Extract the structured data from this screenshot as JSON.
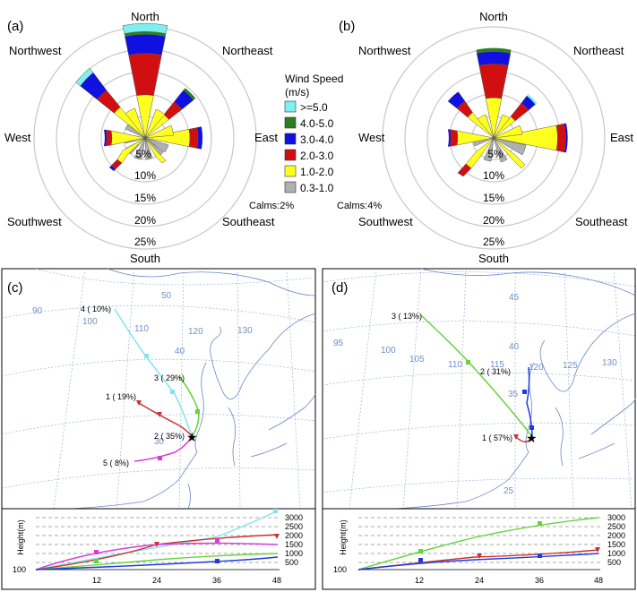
{
  "panels": {
    "a": {
      "label": "(a)",
      "directions": {
        "north": "North",
        "northeast": "Northeast",
        "east": "East",
        "southeast": "Southeast",
        "south": "South",
        "southwest": "Southwest",
        "west": "West",
        "northwest": "Northwest"
      },
      "ring_labels": [
        "5%",
        "10%",
        "15%",
        "20%",
        "25%"
      ],
      "calms": "Calms:2%"
    },
    "b": {
      "label": "(b)",
      "directions": {
        "north": "North",
        "northeast": "Northeast",
        "east": "East",
        "southeast": "Southeast",
        "south": "South",
        "southwest": "Southwest",
        "west": "West",
        "northwest": "Northwest"
      },
      "ring_labels": [
        "5%",
        "10%",
        "15%",
        "20%",
        "25%"
      ],
      "calms": "Calms:4%"
    },
    "c": {
      "label": "(c)",
      "map_numbers": [
        "90",
        "100",
        "110",
        "120",
        "130",
        "50",
        "40",
        "30"
      ],
      "trajectories": [
        "1 ( 19%)",
        "2 ( 35%)",
        "3 ( 29%)",
        "4 ( 10%)",
        "5 ( 8%)"
      ]
    },
    "d": {
      "label": "(d)",
      "map_numbers": [
        "95",
        "100",
        "105",
        "110",
        "115",
        "120",
        "125",
        "130",
        "45",
        "40",
        "35",
        "25"
      ],
      "trajectories": [
        "1 ( 57%)",
        "2 ( 31%)",
        "3 ( 13%)"
      ]
    }
  },
  "legend": {
    "title1": "Wind Speed",
    "title2": "(m/s)",
    "items": [
      {
        "label": ">=5.0",
        "color": "#7ff0f0"
      },
      {
        "label": "4.0-5.0",
        "color": "#2e7d1f"
      },
      {
        "label": "3.0-4.0",
        "color": "#1010e0"
      },
      {
        "label": "2.0-3.0",
        "color": "#d01010"
      },
      {
        "label": "1.0-2.0",
        "color": "#ffff20"
      },
      {
        "label": "0.3-1.0",
        "color": "#b0b0b0"
      }
    ]
  },
  "height_axis": {
    "ylabel": "Height(m)",
    "y_ticks": [
      "3000",
      "2500",
      "2000",
      "1500",
      "1000",
      "500"
    ],
    "y_bottom": "100",
    "x_ticks": [
      "12",
      "24",
      "36",
      "48"
    ]
  }
}
